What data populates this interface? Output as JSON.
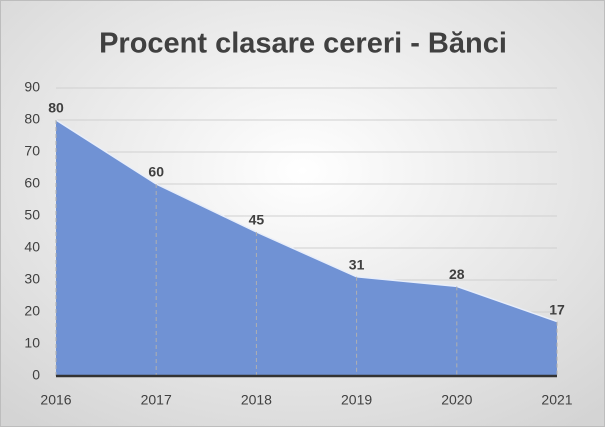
{
  "chart_data": {
    "type": "area",
    "title": "Procent clasare cereri - Bănci",
    "categories": [
      "2016",
      "2017",
      "2018",
      "2019",
      "2020",
      "2021"
    ],
    "values": [
      80,
      60,
      45,
      31,
      28,
      17
    ],
    "color": "#7092d4",
    "ylim": [
      0,
      90
    ],
    "yticks": [
      0,
      10,
      20,
      30,
      40,
      50,
      60,
      70,
      80,
      90
    ],
    "grid": true
  }
}
